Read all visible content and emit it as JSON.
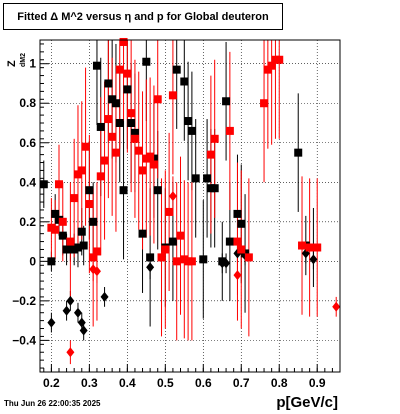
{
  "title": "Fitted Δ M^2 versus η and p for Global deuteron",
  "date": "Thu Jun 26 22:00:35 2025",
  "xlabel": "p[GeV/c]",
  "ylabel_main": "Z",
  "ylabel_sub": "dM2",
  "colors": {
    "black": "#000000",
    "red": "#ff0000"
  },
  "chart_data": {
    "type": "scatter",
    "xlim": [
      0.17,
      0.96
    ],
    "ylim": [
      -0.56,
      1.12
    ],
    "xticks": [
      0.2,
      0.3,
      0.4,
      0.5,
      0.6,
      0.7,
      0.8,
      0.9
    ],
    "xtick_labels": [
      "0.2",
      "0.3",
      "0.4",
      "0.5",
      "0.6",
      "0.7",
      "0.8",
      "0.9"
    ],
    "yticks": [
      -0.4,
      -0.2,
      0,
      0.2,
      0.4,
      0.6,
      0.8,
      1
    ],
    "ytick_labels": [
      "−0.4",
      "−0.2",
      "0",
      "0.2",
      "0.4",
      "0.6",
      "0.8",
      "1"
    ],
    "grid": true,
    "series": [
      {
        "color": "black",
        "marker": "square",
        "points": [
          {
            "x": 0.18,
            "y": 0.39,
            "err": 0.12
          },
          {
            "x": 0.2,
            "y": 0.0,
            "err": 0.05
          },
          {
            "x": 0.21,
            "y": 0.24,
            "err": 0.1
          },
          {
            "x": 0.22,
            "y": 0.21,
            "err": 0.08
          },
          {
            "x": 0.23,
            "y": 0.13,
            "err": 0.1
          },
          {
            "x": 0.24,
            "y": 0.06,
            "err": 0.08
          },
          {
            "x": 0.25,
            "y": 0.06,
            "err": 0.06
          },
          {
            "x": 0.26,
            "y": 0.06,
            "err": 0.08
          },
          {
            "x": 0.27,
            "y": 0.07,
            "err": 0.1
          },
          {
            "x": 0.28,
            "y": 0.15,
            "err": 0.12
          },
          {
            "x": 0.285,
            "y": 0.08,
            "err": 0.1
          },
          {
            "x": 0.3,
            "y": 0.36,
            "err": 0.25
          },
          {
            "x": 0.31,
            "y": 0.2,
            "err": 0.2
          },
          {
            "x": 0.32,
            "y": 0.99,
            "err": 0.3
          },
          {
            "x": 0.33,
            "y": 0.68,
            "err": 0.35
          },
          {
            "x": 0.35,
            "y": 0.9,
            "err": 0.3
          },
          {
            "x": 0.36,
            "y": 0.82,
            "err": 0.3
          },
          {
            "x": 0.37,
            "y": 0.8,
            "err": 0.3
          },
          {
            "x": 0.38,
            "y": 0.7,
            "err": 0.3
          },
          {
            "x": 0.39,
            "y": 0.36,
            "err": 0.35
          },
          {
            "x": 0.4,
            "y": 0.87,
            "err": 0.3
          },
          {
            "x": 0.41,
            "y": 0.7,
            "err": 0.3
          },
          {
            "x": 0.42,
            "y": 0.65,
            "err": 0.3
          },
          {
            "x": 0.44,
            "y": 0.14,
            "err": 0.3
          },
          {
            "x": 0.45,
            "y": 1.01,
            "err": 0.3
          },
          {
            "x": 0.46,
            "y": 0.02,
            "err": 0.35
          },
          {
            "x": 0.47,
            "y": 0.52,
            "err": 0.3
          },
          {
            "x": 0.48,
            "y": 0.36,
            "err": 0.3
          },
          {
            "x": 0.5,
            "y": 0.07,
            "err": 0.3
          },
          {
            "x": 0.52,
            "y": 0.1,
            "err": 0.3
          },
          {
            "x": 0.53,
            "y": 0.97,
            "err": 0.3
          },
          {
            "x": 0.55,
            "y": 0.91,
            "err": 0.3
          },
          {
            "x": 0.56,
            "y": 0.71,
            "err": 0.3
          },
          {
            "x": 0.57,
            "y": 0.66,
            "err": 0.3
          },
          {
            "x": 0.58,
            "y": 0.42,
            "err": 0.3
          },
          {
            "x": 0.6,
            "y": 0.01,
            "err": 0.3
          },
          {
            "x": 0.61,
            "y": 0.42,
            "err": 0.3
          },
          {
            "x": 0.62,
            "y": 0.37,
            "err": 0.3
          },
          {
            "x": 0.63,
            "y": 0.37,
            "err": 0.3
          },
          {
            "x": 0.65,
            "y": 0.0,
            "err": 0.2
          },
          {
            "x": 0.66,
            "y": 0.81,
            "err": 0.3
          },
          {
            "x": 0.67,
            "y": 0.1,
            "err": 0.3
          },
          {
            "x": 0.69,
            "y": 0.24,
            "err": 0.3
          },
          {
            "x": 0.7,
            "y": 0.19,
            "err": 0.3
          },
          {
            "x": 0.71,
            "y": 0.04,
            "err": 0.3
          },
          {
            "x": 0.85,
            "y": 0.55,
            "err": 0.3
          },
          {
            "x": 0.87,
            "y": 0.08,
            "err": 0.15
          },
          {
            "x": 0.89,
            "y": 0.07,
            "err": 0.2
          }
        ]
      },
      {
        "color": "black",
        "marker": "diamond",
        "points": [
          {
            "x": 0.2,
            "y": -0.31,
            "err": 0.05
          },
          {
            "x": 0.24,
            "y": -0.25,
            "err": 0.05
          },
          {
            "x": 0.25,
            "y": -0.2,
            "err": 0.05
          },
          {
            "x": 0.27,
            "y": -0.26,
            "err": 0.05
          },
          {
            "x": 0.28,
            "y": -0.31,
            "err": 0.05
          },
          {
            "x": 0.285,
            "y": -0.35,
            "err": 0.05
          },
          {
            "x": 0.34,
            "y": -0.18,
            "err": 0.05
          },
          {
            "x": 0.46,
            "y": -0.03,
            "err": 0.06
          },
          {
            "x": 0.65,
            "y": -0.01,
            "err": 0.05
          },
          {
            "x": 0.66,
            "y": -0.01,
            "err": 0.05
          },
          {
            "x": 0.69,
            "y": 0.04,
            "err": 0.05
          },
          {
            "x": 0.71,
            "y": 0.03,
            "err": 0.05
          },
          {
            "x": 0.87,
            "y": 0.04,
            "err": 0.05
          },
          {
            "x": 0.89,
            "y": 0.01,
            "err": 0.05
          }
        ]
      },
      {
        "color": "red",
        "marker": "square",
        "points": [
          {
            "x": 0.2,
            "y": 0.17,
            "err": 0.15
          },
          {
            "x": 0.21,
            "y": 0.16,
            "err": 0.15
          },
          {
            "x": 0.22,
            "y": 0.39,
            "err": 0.2
          },
          {
            "x": 0.23,
            "y": 0.2,
            "err": 0.2
          },
          {
            "x": 0.25,
            "y": 0.1,
            "err": 0.3
          },
          {
            "x": 0.26,
            "y": 0.32,
            "err": 0.3
          },
          {
            "x": 0.27,
            "y": 0.44,
            "err": 0.35
          },
          {
            "x": 0.28,
            "y": 0.46,
            "err": 0.35
          },
          {
            "x": 0.29,
            "y": 0.58,
            "err": 0.4
          },
          {
            "x": 0.3,
            "y": 0.29,
            "err": 0.35
          },
          {
            "x": 0.31,
            "y": 0.02,
            "err": 0.35
          },
          {
            "x": 0.32,
            "y": 0.05,
            "err": 0.35
          },
          {
            "x": 0.33,
            "y": 0.43,
            "err": 0.4
          },
          {
            "x": 0.34,
            "y": 0.51,
            "err": 0.4
          },
          {
            "x": 0.35,
            "y": 0.72,
            "err": 0.4
          },
          {
            "x": 0.36,
            "y": 0.63,
            "err": 0.4
          },
          {
            "x": 0.37,
            "y": 0.55,
            "err": 0.4
          },
          {
            "x": 0.38,
            "y": 0.97,
            "err": 0.4
          },
          {
            "x": 0.39,
            "y": 1.11,
            "err": 0.4
          },
          {
            "x": 0.4,
            "y": 0.95,
            "err": 0.4
          },
          {
            "x": 0.41,
            "y": 0.75,
            "err": 0.4
          },
          {
            "x": 0.42,
            "y": 0.62,
            "err": 0.4
          },
          {
            "x": 0.43,
            "y": 0.56,
            "err": 0.4
          },
          {
            "x": 0.44,
            "y": 0.46,
            "err": 0.4
          },
          {
            "x": 0.45,
            "y": 0.52,
            "err": 0.4
          },
          {
            "x": 0.46,
            "y": 0.53,
            "err": 0.4
          },
          {
            "x": 0.47,
            "y": 0.49,
            "err": 0.4
          },
          {
            "x": 0.48,
            "y": 0.82,
            "err": 0.4
          },
          {
            "x": 0.49,
            "y": 0.02,
            "err": 0.4
          },
          {
            "x": 0.5,
            "y": 0.06,
            "err": 0.4
          },
          {
            "x": 0.51,
            "y": 0.25,
            "err": 0.4
          },
          {
            "x": 0.52,
            "y": 0.84,
            "err": 0.4
          },
          {
            "x": 0.53,
            "y": 0.0,
            "err": 0.4
          },
          {
            "x": 0.54,
            "y": 0.13,
            "err": 0.4
          },
          {
            "x": 0.55,
            "y": 0.01,
            "err": 0.4
          },
          {
            "x": 0.56,
            "y": 0.0,
            "err": 0.4
          },
          {
            "x": 0.57,
            "y": 0.0,
            "err": 0.4
          },
          {
            "x": 0.62,
            "y": 0.54,
            "err": 0.4
          },
          {
            "x": 0.63,
            "y": 0.62,
            "err": 0.4
          },
          {
            "x": 0.67,
            "y": 0.66,
            "err": 0.4
          },
          {
            "x": 0.69,
            "y": 0.1,
            "err": 0.4
          },
          {
            "x": 0.7,
            "y": 0.06,
            "err": 0.4
          },
          {
            "x": 0.72,
            "y": 0.02,
            "err": 0.4
          },
          {
            "x": 0.76,
            "y": 0.8,
            "err": 0.4
          },
          {
            "x": 0.77,
            "y": 0.97,
            "err": 0.4
          },
          {
            "x": 0.78,
            "y": 0.99,
            "err": 0.4
          },
          {
            "x": 0.79,
            "y": 1.02,
            "err": 0.4
          },
          {
            "x": 0.8,
            "y": 1.02,
            "err": 0.4
          },
          {
            "x": 0.86,
            "y": 0.08,
            "err": 0.35
          },
          {
            "x": 0.88,
            "y": 0.07,
            "err": 0.35
          },
          {
            "x": 0.9,
            "y": 0.07,
            "err": 0.35
          }
        ]
      },
      {
        "color": "red",
        "marker": "diamond",
        "points": [
          {
            "x": 0.25,
            "y": -0.46,
            "err": 0.06
          },
          {
            "x": 0.31,
            "y": -0.04,
            "err": 0.06
          },
          {
            "x": 0.32,
            "y": -0.05,
            "err": 0.06
          },
          {
            "x": 0.52,
            "y": 0.33,
            "err": 0.1
          },
          {
            "x": 0.69,
            "y": -0.07,
            "err": 0.1
          },
          {
            "x": 0.95,
            "y": -0.23,
            "err": 0.05
          }
        ]
      }
    ]
  }
}
